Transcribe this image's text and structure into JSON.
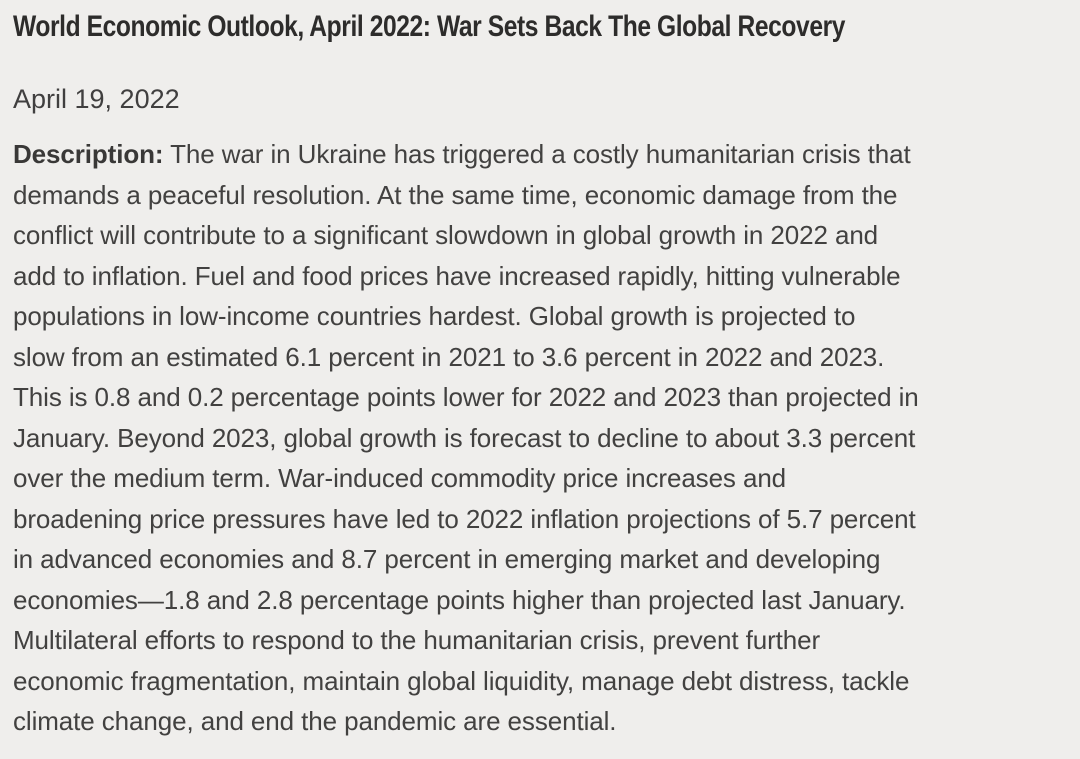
{
  "page": {
    "background_color": "#efeeec",
    "title_color": "#2d2c2b",
    "body_text_color": "#424140"
  },
  "article": {
    "title": "World Economic Outlook, April 2022: War Sets Back The Global Recovery",
    "date": "April 19, 2022",
    "description": {
      "label": "Description:",
      "lines": [
        "The war in Ukraine has triggered a costly humanitarian crisis that",
        "demands a peaceful resolution. At the same time, economic damage from the",
        "conflict will contribute to a significant slowdown in global growth in 2022 and",
        "add to inflation. Fuel and food prices have increased rapidly, hitting vulnerable",
        "populations in low-income countries hardest. Global growth is projected to",
        "slow from an estimated 6.1 percent in 2021 to 3.6 percent in 2022 and 2023.",
        "This is 0.8 and 0.2 percentage points lower for 2022 and 2023 than projected in",
        "January. Beyond 2023, global growth is forecast to decline to about 3.3 percent",
        "over the medium term. War-induced commodity price increases and",
        "broadening price pressures have led to 2022 inflation projections of 5.7 percent",
        "in advanced economies and 8.7 percent in emerging market and developing",
        "economies—1.8 and 2.8 percentage points higher than projected last January.",
        "Multilateral efforts to respond to the humanitarian crisis, prevent further",
        "economic fragmentation, maintain global liquidity, manage debt distress, tackle",
        "climate change, and end the pandemic are essential."
      ]
    }
  }
}
